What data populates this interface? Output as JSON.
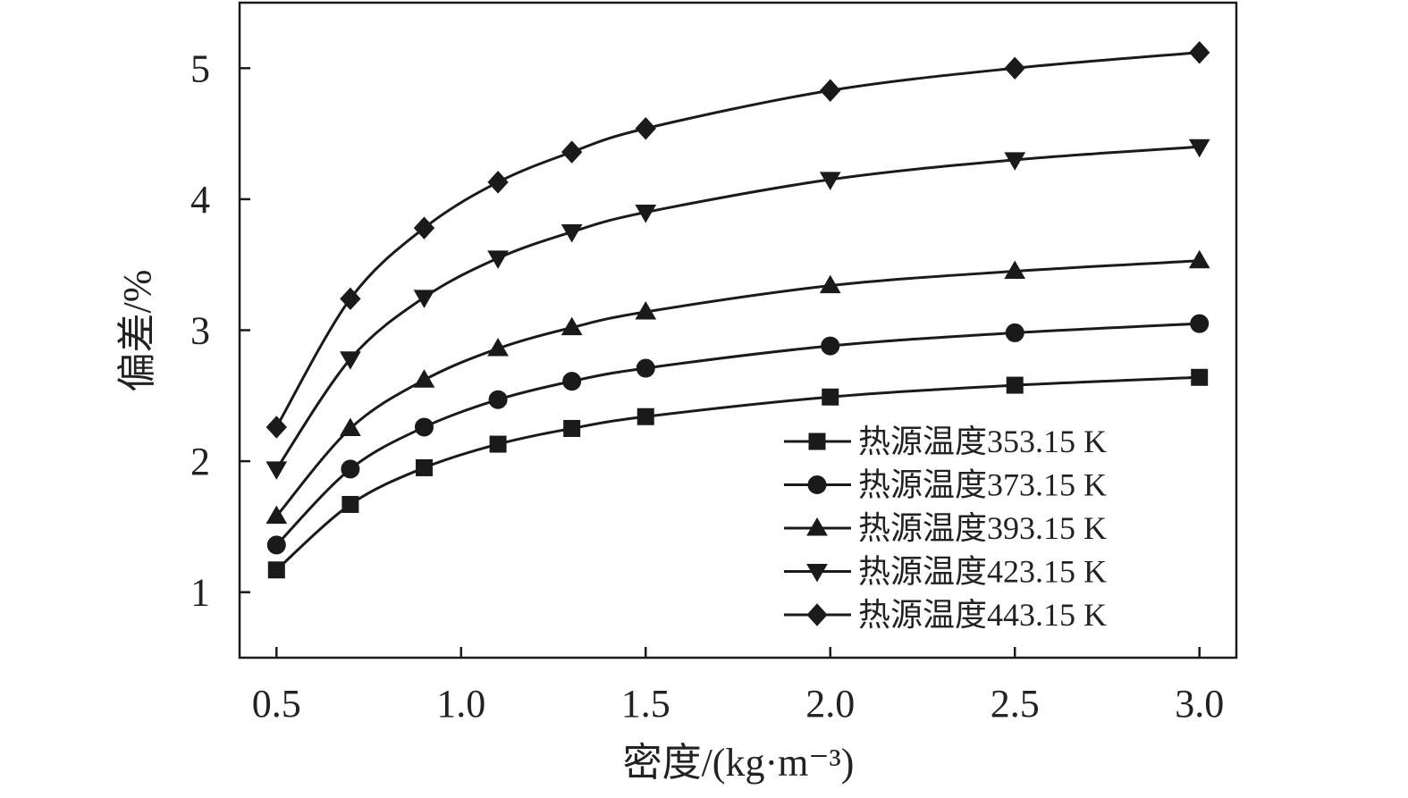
{
  "chart_data": {
    "type": "line",
    "xlabel": "密度/(kg·m⁻³)",
    "ylabel": "偏差/%",
    "xlim": [
      0.4,
      3.1
    ],
    "ylim": [
      0.5,
      5.5
    ],
    "x_ticks": [
      "0.5",
      "1.0",
      "1.5",
      "2.0",
      "2.5",
      "3.0"
    ],
    "y_ticks": [
      "1",
      "2",
      "3",
      "4",
      "5"
    ],
    "grid": false,
    "legend_position": "bottom-right",
    "x": [
      0.5,
      0.7,
      0.9,
      1.1,
      1.3,
      1.5,
      2.0,
      2.5,
      3.0
    ],
    "series": [
      {
        "name": "热源温度353.15 K",
        "marker": "square",
        "values": [
          1.17,
          1.67,
          1.95,
          2.13,
          2.25,
          2.34,
          2.49,
          2.58,
          2.64
        ]
      },
      {
        "name": "热源温度373.15 K",
        "marker": "circle",
        "values": [
          1.36,
          1.94,
          2.26,
          2.47,
          2.61,
          2.71,
          2.88,
          2.98,
          3.05
        ]
      },
      {
        "name": "热源温度393.15 K",
        "marker": "triangle-up",
        "values": [
          1.58,
          2.25,
          2.62,
          2.86,
          3.02,
          3.14,
          3.34,
          3.45,
          3.53
        ]
      },
      {
        "name": "热源温度423.15 K",
        "marker": "triangle-down",
        "values": [
          1.94,
          2.78,
          3.25,
          3.55,
          3.75,
          3.9,
          4.15,
          4.3,
          4.4
        ]
      },
      {
        "name": "热源温度443.15 K",
        "marker": "diamond",
        "values": [
          2.26,
          3.24,
          3.78,
          4.13,
          4.36,
          4.54,
          4.83,
          5.0,
          5.12
        ]
      }
    ]
  }
}
